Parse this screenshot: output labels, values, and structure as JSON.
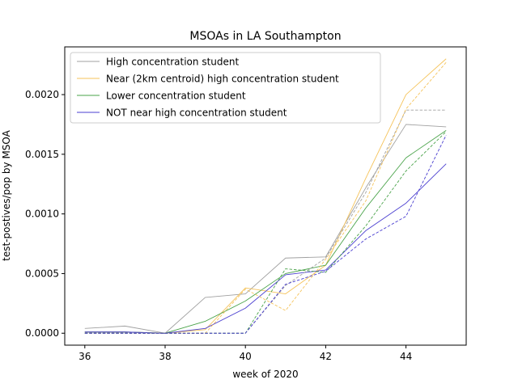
{
  "chart_data": {
    "type": "line",
    "title": "MSOAs in LA Southampton",
    "xlabel": "week of 2020",
    "ylabel": "test-postives/pop by MSOA",
    "xlim": [
      35.5,
      45.5
    ],
    "ylim": [
      -0.0001,
      0.0024
    ],
    "x_ticks": [
      36,
      38,
      40,
      42,
      44
    ],
    "x_tick_labels": [
      "36",
      "38",
      "40",
      "42",
      "44"
    ],
    "y_ticks": [
      0.0,
      0.0005,
      0.001,
      0.0015,
      0.002
    ],
    "y_tick_labels": [
      "0.0000",
      "0.0005",
      "0.0010",
      "0.0015",
      "0.0020"
    ],
    "grid": false,
    "legend_position": "upper-left",
    "x": [
      36,
      37,
      38,
      39,
      40,
      41,
      42,
      43,
      44,
      45
    ],
    "series": [
      {
        "name": "High concentration student",
        "color": "#a0a0a0",
        "style": "solid",
        "values": [
          4e-05,
          6e-05,
          0.0,
          0.0003,
          0.00033,
          0.00063,
          0.00064,
          0.00122,
          0.00175,
          0.00173
        ]
      },
      {
        "name": "Near (2km centroid) high concentration student",
        "color": "#f5c35a",
        "style": "solid",
        "values": [
          1e-05,
          1e-05,
          0.0,
          3e-05,
          0.00038,
          0.00033,
          0.00057,
          0.0013,
          0.002,
          0.0023
        ]
      },
      {
        "name": "Lower concentration student",
        "color": "#4aa34a",
        "style": "solid",
        "values": [
          1e-05,
          1e-05,
          0.0,
          0.0001,
          0.00027,
          0.0005,
          0.00057,
          0.00105,
          0.00147,
          0.0017
        ]
      },
      {
        "name": "NOT near high concentration student",
        "color": "#4a3fd0",
        "style": "solid",
        "values": [
          1e-05,
          1e-05,
          0.0,
          4e-05,
          0.00021,
          0.00049,
          0.00053,
          0.00086,
          0.00109,
          0.00142
        ]
      },
      {
        "color": "#a0a0a0",
        "style": "dashed",
        "values": [
          0.0,
          0.0,
          0.0,
          0.0,
          0.0,
          0.0004,
          0.00063,
          0.00118,
          0.00187,
          0.00187
        ]
      },
      {
        "color": "#f5c35a",
        "style": "dashed",
        "values": [
          0.0,
          0.0,
          0.0,
          0.0,
          0.00037,
          0.00019,
          0.00062,
          0.00111,
          0.00188,
          0.00227
        ]
      },
      {
        "color": "#4aa34a",
        "style": "dashed",
        "values": [
          0.0,
          0.0,
          0.0,
          0.0,
          0.0,
          0.00054,
          0.00051,
          0.0009,
          0.00136,
          0.00169
        ]
      },
      {
        "color": "#4a3fd0",
        "style": "dashed",
        "values": [
          0.0,
          0.0,
          0.0,
          0.0,
          0.0,
          0.00041,
          0.00052,
          0.00079,
          0.00098,
          0.00166
        ]
      }
    ]
  }
}
